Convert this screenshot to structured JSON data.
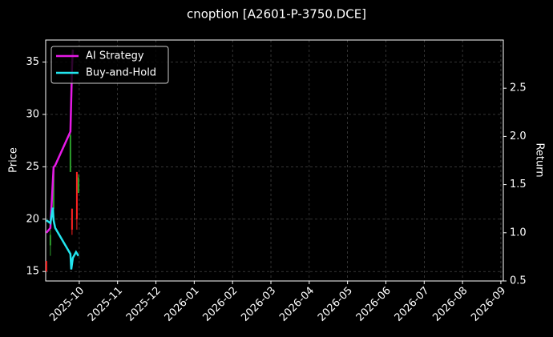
{
  "chart_data": {
    "type": "candlestick",
    "title": "cnoption [A2601-P-3750.DCE]",
    "ylabel": "Price",
    "y2label": "Return",
    "x": [
      2025.6785,
      2025.6872,
      2025.6942,
      2025.7308,
      2025.7343,
      2025.7448,
      2025.7483
    ],
    "open": [
      16,
      17.5,
      21,
      24.5,
      21,
      24.5,
      22.5
    ],
    "high": [
      16,
      19,
      25,
      30,
      21,
      24.5,
      24.3
    ],
    "low": [
      15,
      16.5,
      20,
      24.5,
      18.5,
      19,
      22.5
    ],
    "close": [
      15,
      18.5,
      24.8,
      28,
      19,
      20,
      24
    ],
    "up_color": "#2ca02c",
    "down_color": "#ff2222",
    "series": [
      {
        "name": "AI Strategy",
        "color": "#e619e6",
        "axis": "y2",
        "x": [
          2025.6785,
          2025.6872,
          2025.6942,
          2025.6977,
          2025.7308,
          2025.7343,
          2025.7361
        ],
        "values": [
          1.0,
          1.05,
          1.68,
          1.7,
          2.05,
          2.72,
          2.9
        ]
      },
      {
        "name": "Buy-and-Hold",
        "color": "#22e5ee",
        "axis": "y2",
        "x": [
          2025.6785,
          2025.6872,
          2025.6925,
          2025.6942,
          2025.6977,
          2025.7308,
          2025.7326,
          2025.7361,
          2025.743,
          2025.7483
        ],
        "values": [
          1.13,
          1.1,
          1.26,
          1.13,
          1.05,
          0.78,
          0.62,
          0.74,
          0.8,
          0.76
        ]
      }
    ],
    "xlim": [
      2025.677,
      2026.672
    ],
    "xticks": [
      {
        "value": 2025.75,
        "label": "2025-10"
      },
      {
        "value": 2025.8333,
        "label": "2025-11"
      },
      {
        "value": 2025.9167,
        "label": "2025-12"
      },
      {
        "value": 2026.0,
        "label": "2026-01"
      },
      {
        "value": 2026.0833,
        "label": "2026-02"
      },
      {
        "value": 2026.1667,
        "label": "2026-03"
      },
      {
        "value": 2026.25,
        "label": "2026-04"
      },
      {
        "value": 2026.3333,
        "label": "2026-05"
      },
      {
        "value": 2026.4167,
        "label": "2026-06"
      },
      {
        "value": 2026.5,
        "label": "2026-07"
      },
      {
        "value": 2026.5833,
        "label": "2026-08"
      },
      {
        "value": 2026.6667,
        "label": "2026-09"
      }
    ],
    "ylim": [
      14.1,
      37.1
    ],
    "yticks": [
      15,
      20,
      25,
      30,
      35
    ],
    "y2lim": [
      0.5,
      3.0
    ],
    "y2ticks": [
      {
        "value": 0.5,
        "label": "0.5"
      },
      {
        "value": 1.0,
        "label": "1.0"
      },
      {
        "value": 1.5,
        "label": "1.5"
      },
      {
        "value": 2.0,
        "label": "2.0"
      },
      {
        "value": 2.5,
        "label": "2.5"
      }
    ],
    "grid": true,
    "legend": "upper left"
  }
}
